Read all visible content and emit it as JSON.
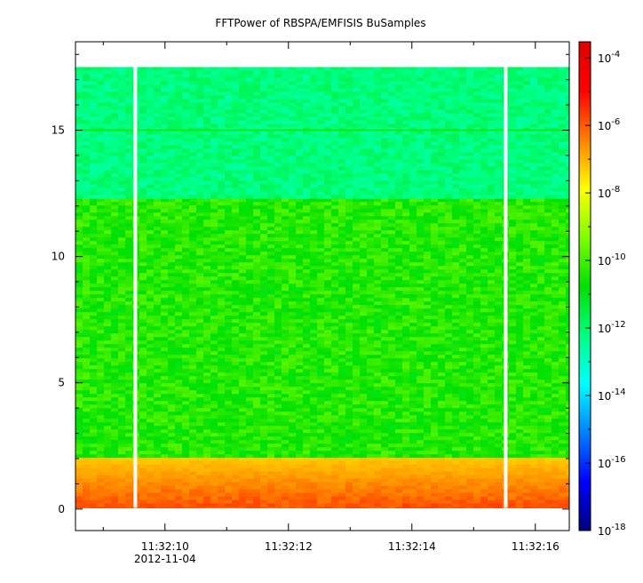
{
  "chart_data": {
    "type": "heatmap",
    "title": "FFTPower of RBSPA/EMFISIS  BuSamples",
    "x_axis": {
      "ticks": [
        {
          "t": 10,
          "label": "11:32:10",
          "sublabel": "2012-11-04"
        },
        {
          "t": 12,
          "label": "11:32:12",
          "sublabel": ""
        },
        {
          "t": 14,
          "label": "11:32:14",
          "sublabel": ""
        },
        {
          "t": 16,
          "label": "11:32:16",
          "sublabel": ""
        }
      ],
      "minor_ticks": [
        9,
        11,
        13,
        15
      ],
      "range_seconds_after_11_32": [
        8.55,
        16.55
      ]
    },
    "y_axis": {
      "range": [
        -0.85,
        18.5
      ],
      "ticks": [
        {
          "v": 0,
          "label": "0"
        },
        {
          "v": 5,
          "label": "5"
        },
        {
          "v": 10,
          "label": "10"
        },
        {
          "v": 15,
          "label": "15"
        }
      ]
    },
    "colorbar": {
      "scale": "log",
      "range": [
        1e-18,
        0.0003
      ],
      "ticks": [
        {
          "exp": -4,
          "label_base": "10",
          "label_exp": "-4"
        },
        {
          "exp": -6,
          "label_base": "10",
          "label_exp": "-6"
        },
        {
          "exp": -8,
          "label_base": "10",
          "label_exp": "-8"
        },
        {
          "exp": -10,
          "label_base": "10",
          "label_exp": "-10"
        },
        {
          "exp": -12,
          "label_base": "10",
          "label_exp": "-12"
        },
        {
          "exp": -14,
          "label_base": "10",
          "label_exp": "-14"
        },
        {
          "exp": -16,
          "label_base": "10",
          "label_exp": "-16"
        },
        {
          "exp": -18,
          "label_base": "10",
          "label_exp": "-18"
        }
      ],
      "colors": [
        "#00007f",
        "#0000ff",
        "#0080ff",
        "#00ffff",
        "#00ff80",
        "#00e000",
        "#80ff00",
        "#ffff00",
        "#ff8000",
        "#ff0000",
        "#df0000"
      ]
    },
    "data_span": {
      "t_start": 8.55,
      "t_end": 16.55,
      "y_min": 0.05,
      "y_max": 17.5
    },
    "gaps_t": [
      9.52,
      15.52
    ],
    "bands": [
      {
        "y_from": 0.05,
        "y_to": 2.05,
        "log_power_min": -8.0,
        "log_power_max": -5.5
      },
      {
        "y_from": 2.05,
        "y_to": 12.3,
        "log_power_min": -11.0,
        "log_power_max": -9.8
      },
      {
        "y_from": 12.3,
        "y_to": 17.5,
        "log_power_min": -12.6,
        "log_power_max": -11.7
      }
    ],
    "line_feature": {
      "y": 15.0,
      "log_power": -10.5
    }
  }
}
